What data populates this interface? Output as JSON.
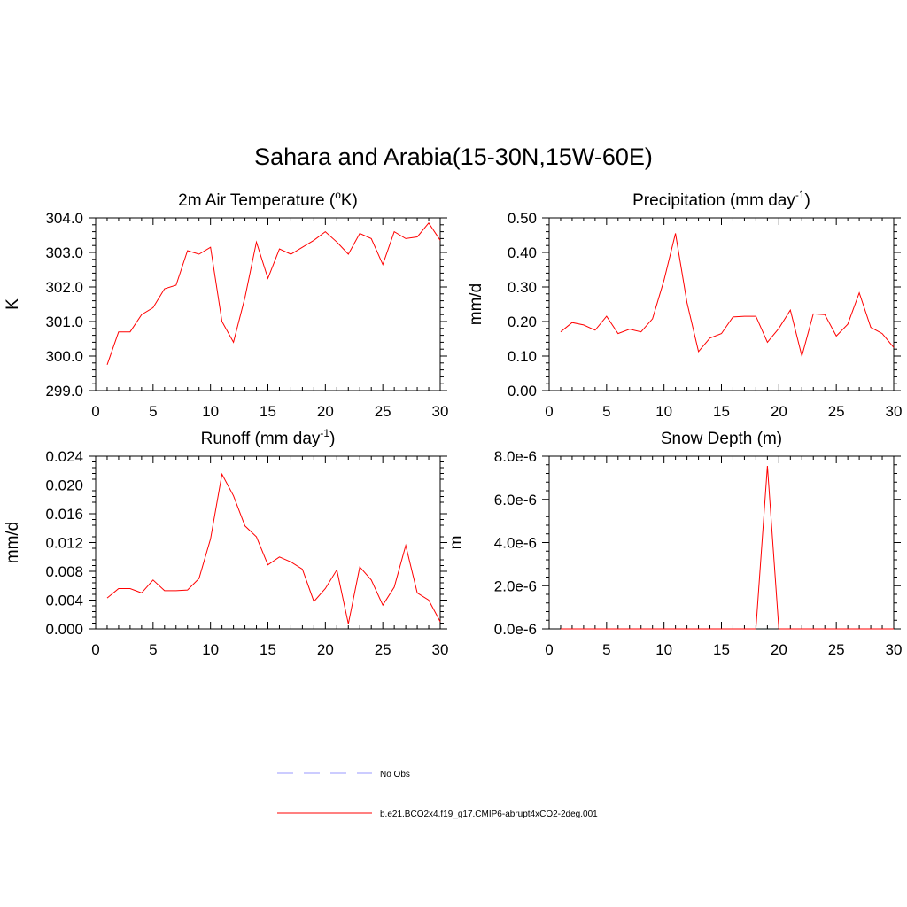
{
  "title": "Sahara and Arabia(15-30N,15W-60E)",
  "colors": {
    "series": "#ff0000",
    "obs": "#9999ff",
    "axis": "#000000"
  },
  "legend": [
    {
      "label": "No Obs",
      "style": "dashed",
      "color": "#9999ff"
    },
    {
      "label": "b.e21.BCO2x4.f19_g17.CMIP6-abrupt4xCO2-2deg.001",
      "style": "solid",
      "color": "#ff0000"
    }
  ],
  "chart_data": [
    {
      "type": "line",
      "title": "2m Air Temperature (",
      "title_sup": "o",
      "title_end": "K)",
      "ylabel": "K",
      "xlim": [
        0,
        30
      ],
      "ylim": [
        299.0,
        304.0
      ],
      "xticks": [
        "0",
        "5",
        "10",
        "15",
        "20",
        "25",
        "30"
      ],
      "yticks": [
        "299.0",
        "300.0",
        "301.0",
        "302.0",
        "303.0",
        "304.0"
      ],
      "x": [
        1,
        2,
        3,
        4,
        5,
        6,
        7,
        8,
        9,
        10,
        11,
        12,
        13,
        14,
        15,
        16,
        17,
        18,
        19,
        20,
        21,
        22,
        23,
        24,
        25,
        26,
        27,
        28,
        29,
        30
      ],
      "values": [
        299.75,
        300.7,
        300.7,
        301.2,
        301.4,
        301.95,
        302.05,
        303.05,
        302.95,
        303.15,
        301.0,
        300.4,
        301.7,
        303.3,
        302.25,
        303.1,
        302.95,
        303.15,
        303.35,
        303.6,
        303.3,
        302.95,
        303.55,
        303.4,
        302.65,
        303.6,
        303.4,
        303.45,
        303.85,
        303.35
      ]
    },
    {
      "type": "line",
      "title": "Precipitation (mm day",
      "title_sup": "-1",
      "title_end": ")",
      "ylabel": "mm/d",
      "xlim": [
        0,
        30
      ],
      "ylim": [
        0.0,
        0.5
      ],
      "xticks": [
        "0",
        "5",
        "10",
        "15",
        "20",
        "25",
        "30"
      ],
      "yticks": [
        "0.00",
        "0.10",
        "0.20",
        "0.30",
        "0.40",
        "0.50"
      ],
      "x": [
        1,
        2,
        3,
        4,
        5,
        6,
        7,
        8,
        9,
        10,
        11,
        12,
        13,
        14,
        15,
        16,
        17,
        18,
        19,
        20,
        21,
        22,
        23,
        24,
        25,
        26,
        27,
        28,
        29,
        30
      ],
      "values": [
        0.17,
        0.197,
        0.19,
        0.175,
        0.215,
        0.165,
        0.178,
        0.17,
        0.208,
        0.32,
        0.455,
        0.255,
        0.113,
        0.152,
        0.165,
        0.213,
        0.215,
        0.215,
        0.14,
        0.18,
        0.233,
        0.1,
        0.222,
        0.22,
        0.158,
        0.192,
        0.283,
        0.183,
        0.165,
        0.125
      ]
    },
    {
      "type": "line",
      "title": "Runoff (mm day",
      "title_sup": "-1",
      "title_end": ")",
      "ylabel": "mm/d",
      "xlim": [
        0,
        30
      ],
      "ylim": [
        0.0,
        0.024
      ],
      "xticks": [
        "0",
        "5",
        "10",
        "15",
        "20",
        "25",
        "30"
      ],
      "yticks": [
        "0.000",
        "0.004",
        "0.008",
        "0.012",
        "0.016",
        "0.020",
        "0.024"
      ],
      "x": [
        1,
        2,
        3,
        4,
        5,
        6,
        7,
        8,
        9,
        10,
        11,
        12,
        13,
        14,
        15,
        16,
        17,
        18,
        19,
        20,
        21,
        22,
        23,
        24,
        25,
        26,
        27,
        28,
        29,
        30
      ],
      "values": [
        0.0043,
        0.0056,
        0.0056,
        0.005,
        0.0068,
        0.0053,
        0.0053,
        0.0054,
        0.007,
        0.0125,
        0.0215,
        0.0185,
        0.0143,
        0.0128,
        0.0089,
        0.01,
        0.0093,
        0.0083,
        0.0038,
        0.0056,
        0.0082,
        0.0007,
        0.0086,
        0.0068,
        0.0033,
        0.0058,
        0.0116,
        0.005,
        0.004,
        0.001
      ]
    },
    {
      "type": "line",
      "title": "Snow Depth (m)",
      "title_sup": "",
      "title_end": "",
      "ylabel": "m",
      "xlim": [
        0,
        30
      ],
      "ylim": [
        0.0,
        8e-06
      ],
      "xticks": [
        "0",
        "5",
        "10",
        "15",
        "20",
        "25",
        "30"
      ],
      "yticks": [
        "0.0e-6",
        "2.0e-6",
        "4.0e-6",
        "6.0e-6",
        "8.0e-6"
      ],
      "x": [
        1,
        2,
        3,
        4,
        5,
        6,
        7,
        8,
        9,
        10,
        11,
        12,
        13,
        14,
        15,
        16,
        17,
        18,
        19,
        20,
        21,
        22,
        23,
        24,
        25,
        26,
        27,
        28,
        29,
        30
      ],
      "values": [
        0,
        0,
        0,
        0,
        0,
        0,
        0,
        0,
        0,
        0,
        0,
        0,
        0,
        0,
        0,
        0,
        0,
        0,
        7.55e-06,
        0,
        0,
        0,
        0,
        0,
        0,
        0,
        0,
        0,
        0,
        0
      ]
    }
  ]
}
